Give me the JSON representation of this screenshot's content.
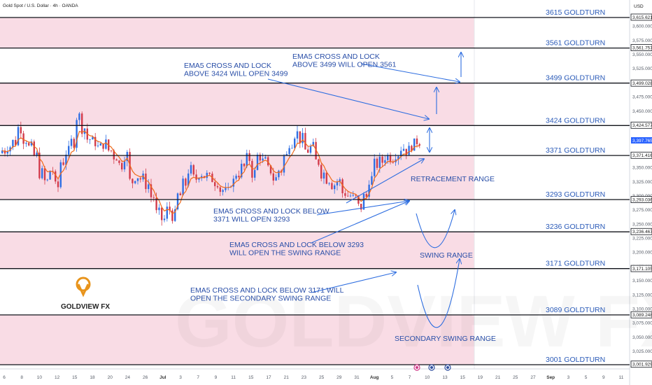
{
  "symbol_title": "Gold Spot / U.S. Dollar · 4h · OANDA",
  "currency": "USD",
  "brand": "GOLDVIEW FX",
  "colors": {
    "band": "#f9dce5",
    "line_blue": "#2d6de0",
    "text_blue": "#2a5ab8",
    "candle_up": "#2f6fe4",
    "candle_down": "#d23b4b",
    "ema": "#ef6a1a",
    "logo": "#e8941c"
  },
  "chart_data": {
    "type": "candlestick",
    "y_range": [
      2995,
      3630
    ],
    "y_ticks": [
      {
        "v": 3600,
        "t": "3,600.000"
      },
      {
        "v": 3575,
        "t": "3,575.000"
      },
      {
        "v": 3550,
        "t": "3,550.000"
      },
      {
        "v": 3525,
        "t": "3,525.000"
      },
      {
        "v": 3475,
        "t": "3,475.000"
      },
      {
        "v": 3450,
        "t": "3,450.000"
      },
      {
        "v": 3350,
        "t": "3,350.000"
      },
      {
        "v": 3325,
        "t": "3,325.000"
      },
      {
        "v": 3300,
        "t": "3,300.000"
      },
      {
        "v": 3275,
        "t": "3,275.000"
      },
      {
        "v": 3250,
        "t": "3,250.000"
      },
      {
        "v": 3225,
        "t": "3,225.000"
      },
      {
        "v": 3200,
        "t": "3,200.000"
      },
      {
        "v": 3175,
        "t": "3,175.000"
      },
      {
        "v": 3150,
        "t": "3,150.000"
      },
      {
        "v": 3125,
        "t": "3,125.000"
      },
      {
        "v": 3100,
        "t": "3,100.000"
      },
      {
        "v": 3075,
        "t": "3,075.000"
      },
      {
        "v": 3050,
        "t": "3,050.000"
      },
      {
        "v": 3025,
        "t": "3,025.000"
      }
    ],
    "price_tags": [
      {
        "v": 3615.621,
        "t": "3,615.621"
      },
      {
        "v": 3561.757,
        "t": "3,561.757"
      },
      {
        "v": 3499.028,
        "t": "3,499.028"
      },
      {
        "v": 3424.577,
        "t": "3,424.577"
      },
      {
        "v": 3371.416,
        "t": "3,371.416"
      },
      {
        "v": 3293.036,
        "t": "3,293.036"
      },
      {
        "v": 3236.467,
        "t": "3,236.467"
      },
      {
        "v": 3171.105,
        "t": "3,171.105"
      },
      {
        "v": 3089.248,
        "t": "3,089.248"
      },
      {
        "v": 3001.929,
        "t": "3,001.929"
      }
    ],
    "current_price": {
      "v": 3397.765,
      "t": "3,397.765"
    },
    "levels": [
      {
        "v": 3615,
        "label": "3615 GOLDTURN"
      },
      {
        "v": 3561,
        "label": "3561 GOLDTURN"
      },
      {
        "v": 3499,
        "label": "3499 GOLDTURN"
      },
      {
        "v": 3424,
        "label": "3424 GOLDTURN"
      },
      {
        "v": 3371,
        "label": "3371 GOLDTURN"
      },
      {
        "v": 3293,
        "label": "3293 GOLDTURN"
      },
      {
        "v": 3236,
        "label": "3236 GOLDTURN"
      },
      {
        "v": 3171,
        "label": "3171 GOLDTURN"
      },
      {
        "v": 3089,
        "label": "3089 GOLDTURN"
      },
      {
        "v": 3001,
        "label": "3001 GOLDTURN"
      }
    ],
    "bands": [
      [
        3561,
        3615
      ],
      [
        3424,
        3499
      ],
      [
        3293,
        3371
      ],
      [
        3171,
        3236
      ],
      [
        3001,
        3089
      ]
    ],
    "x_labels": [
      "6",
      "8",
      "10",
      "12",
      "15",
      "18",
      "20",
      "24",
      "26",
      "Jul",
      "3",
      "7",
      "9",
      "11",
      "15",
      "17",
      "21",
      "23",
      "25",
      "29",
      "31",
      "Aug",
      "5",
      "7",
      "10",
      "13",
      "15",
      "19",
      "21",
      "25",
      "27",
      "Sep",
      "3",
      "5",
      "9",
      "11"
    ],
    "x_start": "2025-06-05",
    "x_end": "2025-09-12",
    "last_bar": "2025-08-11",
    "closes": [
      [
        0,
        3380
      ],
      [
        2,
        3395
      ],
      [
        3,
        3420
      ],
      [
        4,
        3400
      ],
      [
        6,
        3370
      ],
      [
        7,
        3340
      ],
      [
        8,
        3325
      ],
      [
        9,
        3345
      ],
      [
        10,
        3315
      ],
      [
        11,
        3360
      ],
      [
        13,
        3395
      ],
      [
        14,
        3440
      ],
      [
        15,
        3420
      ],
      [
        16,
        3400
      ],
      [
        17,
        3395
      ],
      [
        18,
        3385
      ],
      [
        19,
        3392
      ],
      [
        20,
        3380
      ],
      [
        21,
        3370
      ],
      [
        22,
        3355
      ],
      [
        23,
        3372
      ],
      [
        24,
        3325
      ],
      [
        25,
        3335
      ],
      [
        26,
        3330
      ],
      [
        27,
        3320
      ],
      [
        28,
        3298
      ],
      [
        29,
        3268
      ],
      [
        30,
        3258
      ],
      [
        31,
        3275
      ],
      [
        32,
        3265
      ],
      [
        33,
        3300
      ],
      [
        34,
        3320
      ],
      [
        35,
        3345
      ],
      [
        36,
        3330
      ],
      [
        37,
        3340
      ],
      [
        38,
        3335
      ],
      [
        39,
        3330
      ],
      [
        40,
        3325
      ],
      [
        41,
        3310
      ],
      [
        42,
        3305
      ],
      [
        43,
        3325
      ],
      [
        44,
        3340
      ],
      [
        45,
        3350
      ],
      [
        46,
        3365
      ],
      [
        47,
        3340
      ],
      [
        48,
        3370
      ],
      [
        49,
        3360
      ],
      [
        50,
        3345
      ],
      [
        51,
        3330
      ],
      [
        52,
        3345
      ],
      [
        53,
        3370
      ],
      [
        54,
        3395
      ],
      [
        55,
        3410
      ],
      [
        56,
        3400
      ],
      [
        57,
        3380
      ],
      [
        58,
        3385
      ],
      [
        59,
        3360
      ],
      [
        60,
        3340
      ],
      [
        61,
        3330
      ],
      [
        62,
        3320
      ],
      [
        63,
        3325
      ],
      [
        64,
        3305
      ],
      [
        65,
        3300
      ],
      [
        66,
        3295
      ],
      [
        67,
        3280
      ],
      [
        68,
        3298
      ],
      [
        69,
        3330
      ],
      [
        70,
        3355
      ],
      [
        71,
        3360
      ],
      [
        72,
        3370
      ],
      [
        73,
        3368
      ],
      [
        74,
        3375
      ],
      [
        75,
        3385
      ],
      [
        76,
        3380
      ],
      [
        77,
        3390
      ],
      [
        78,
        3397
      ]
    ]
  },
  "annotations": [
    {
      "id": "a1",
      "lines": [
        "EMA5 CROSS AND LOCK",
        "ABOVE 3424 WILL OPEN 3499"
      ]
    },
    {
      "id": "a2",
      "lines": [
        "EMA5 CROSS AND LOCK",
        "ABOVE 3499 WILL OPEN 3561"
      ]
    },
    {
      "id": "a3",
      "lines": [
        "EMA5 CROSS AND LOCK BELOW",
        "3371 WILL OPEN 3293"
      ]
    },
    {
      "id": "a4",
      "lines": [
        "EMA5 CROSS AND LOCK BELOW 3293",
        "WILL OPEN THE SWING RANGE"
      ]
    },
    {
      "id": "a5",
      "lines": [
        "EMA5 CROSS AND LOCK BELOW 3171 WILL",
        "OPEN THE SECONDARY SWING RANGE"
      ]
    }
  ],
  "range_labels": {
    "retracement": "RETRACEMENT RANGE",
    "swing": "SWING RANGE",
    "secondary": "SECONDARY SWING RANGE"
  }
}
